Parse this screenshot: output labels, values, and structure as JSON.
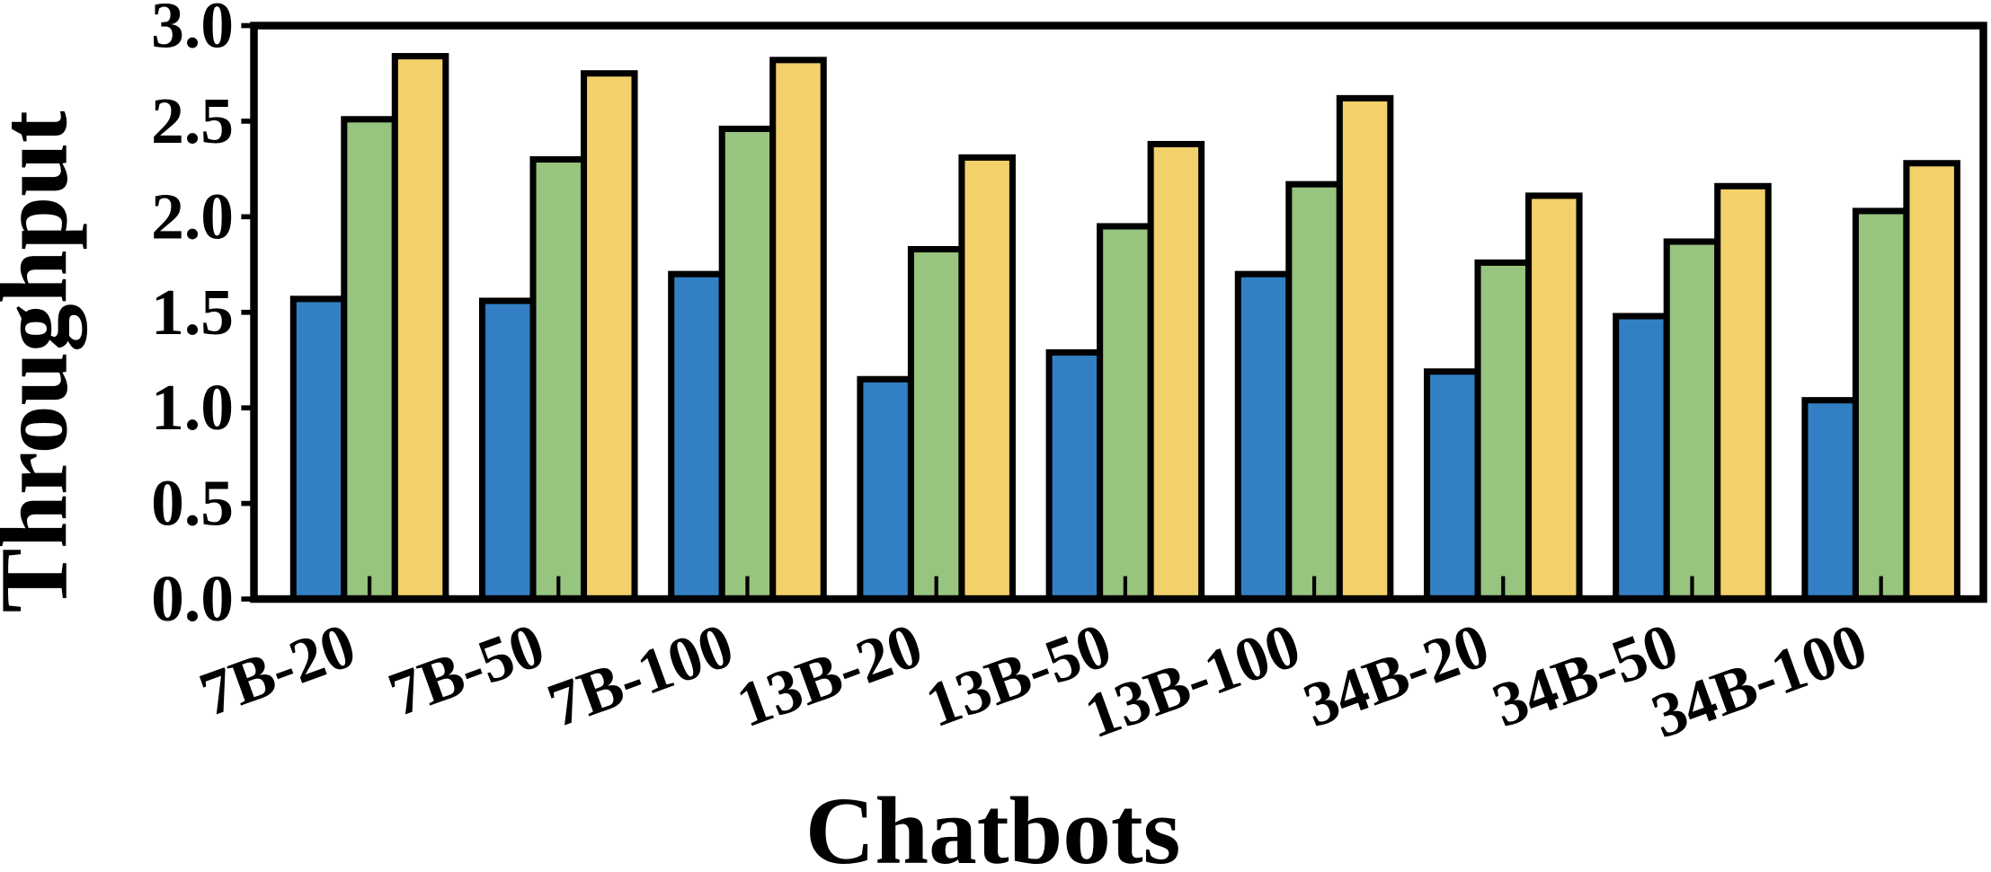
{
  "chart_data": {
    "type": "bar",
    "x_label": "Chatbots",
    "y_label": "Throughput",
    "categories": [
      "7B-20",
      "7B-50",
      "7B-100",
      "13B-20",
      "13B-50",
      "13B-100",
      "34B-20",
      "34B-50",
      "34B-100"
    ],
    "series": [
      {
        "color": "#3280c3",
        "values": [
          1.57,
          1.56,
          1.7,
          1.15,
          1.29,
          1.7,
          1.19,
          1.48,
          1.04
        ]
      },
      {
        "color": "#97c47f",
        "values": [
          2.51,
          2.3,
          2.46,
          1.83,
          1.95,
          2.17,
          1.76,
          1.87,
          2.03
        ]
      },
      {
        "color": "#f2d16b",
        "values": [
          2.84,
          2.75,
          2.82,
          2.31,
          2.38,
          2.62,
          2.11,
          2.16,
          2.28
        ]
      }
    ],
    "ylim": [
      0,
      3.0
    ],
    "yticks": [
      {
        "value": 0,
        "label": "0.0"
      },
      {
        "value": 0.5,
        "label": "0.5"
      },
      {
        "value": 1.0,
        "label": "1.0"
      },
      {
        "value": 1.5,
        "label": "1.5"
      },
      {
        "value": 2.0,
        "label": "2.0"
      },
      {
        "value": 2.5,
        "label": "2.5"
      },
      {
        "value": 3.0,
        "label": "3.0"
      }
    ]
  }
}
